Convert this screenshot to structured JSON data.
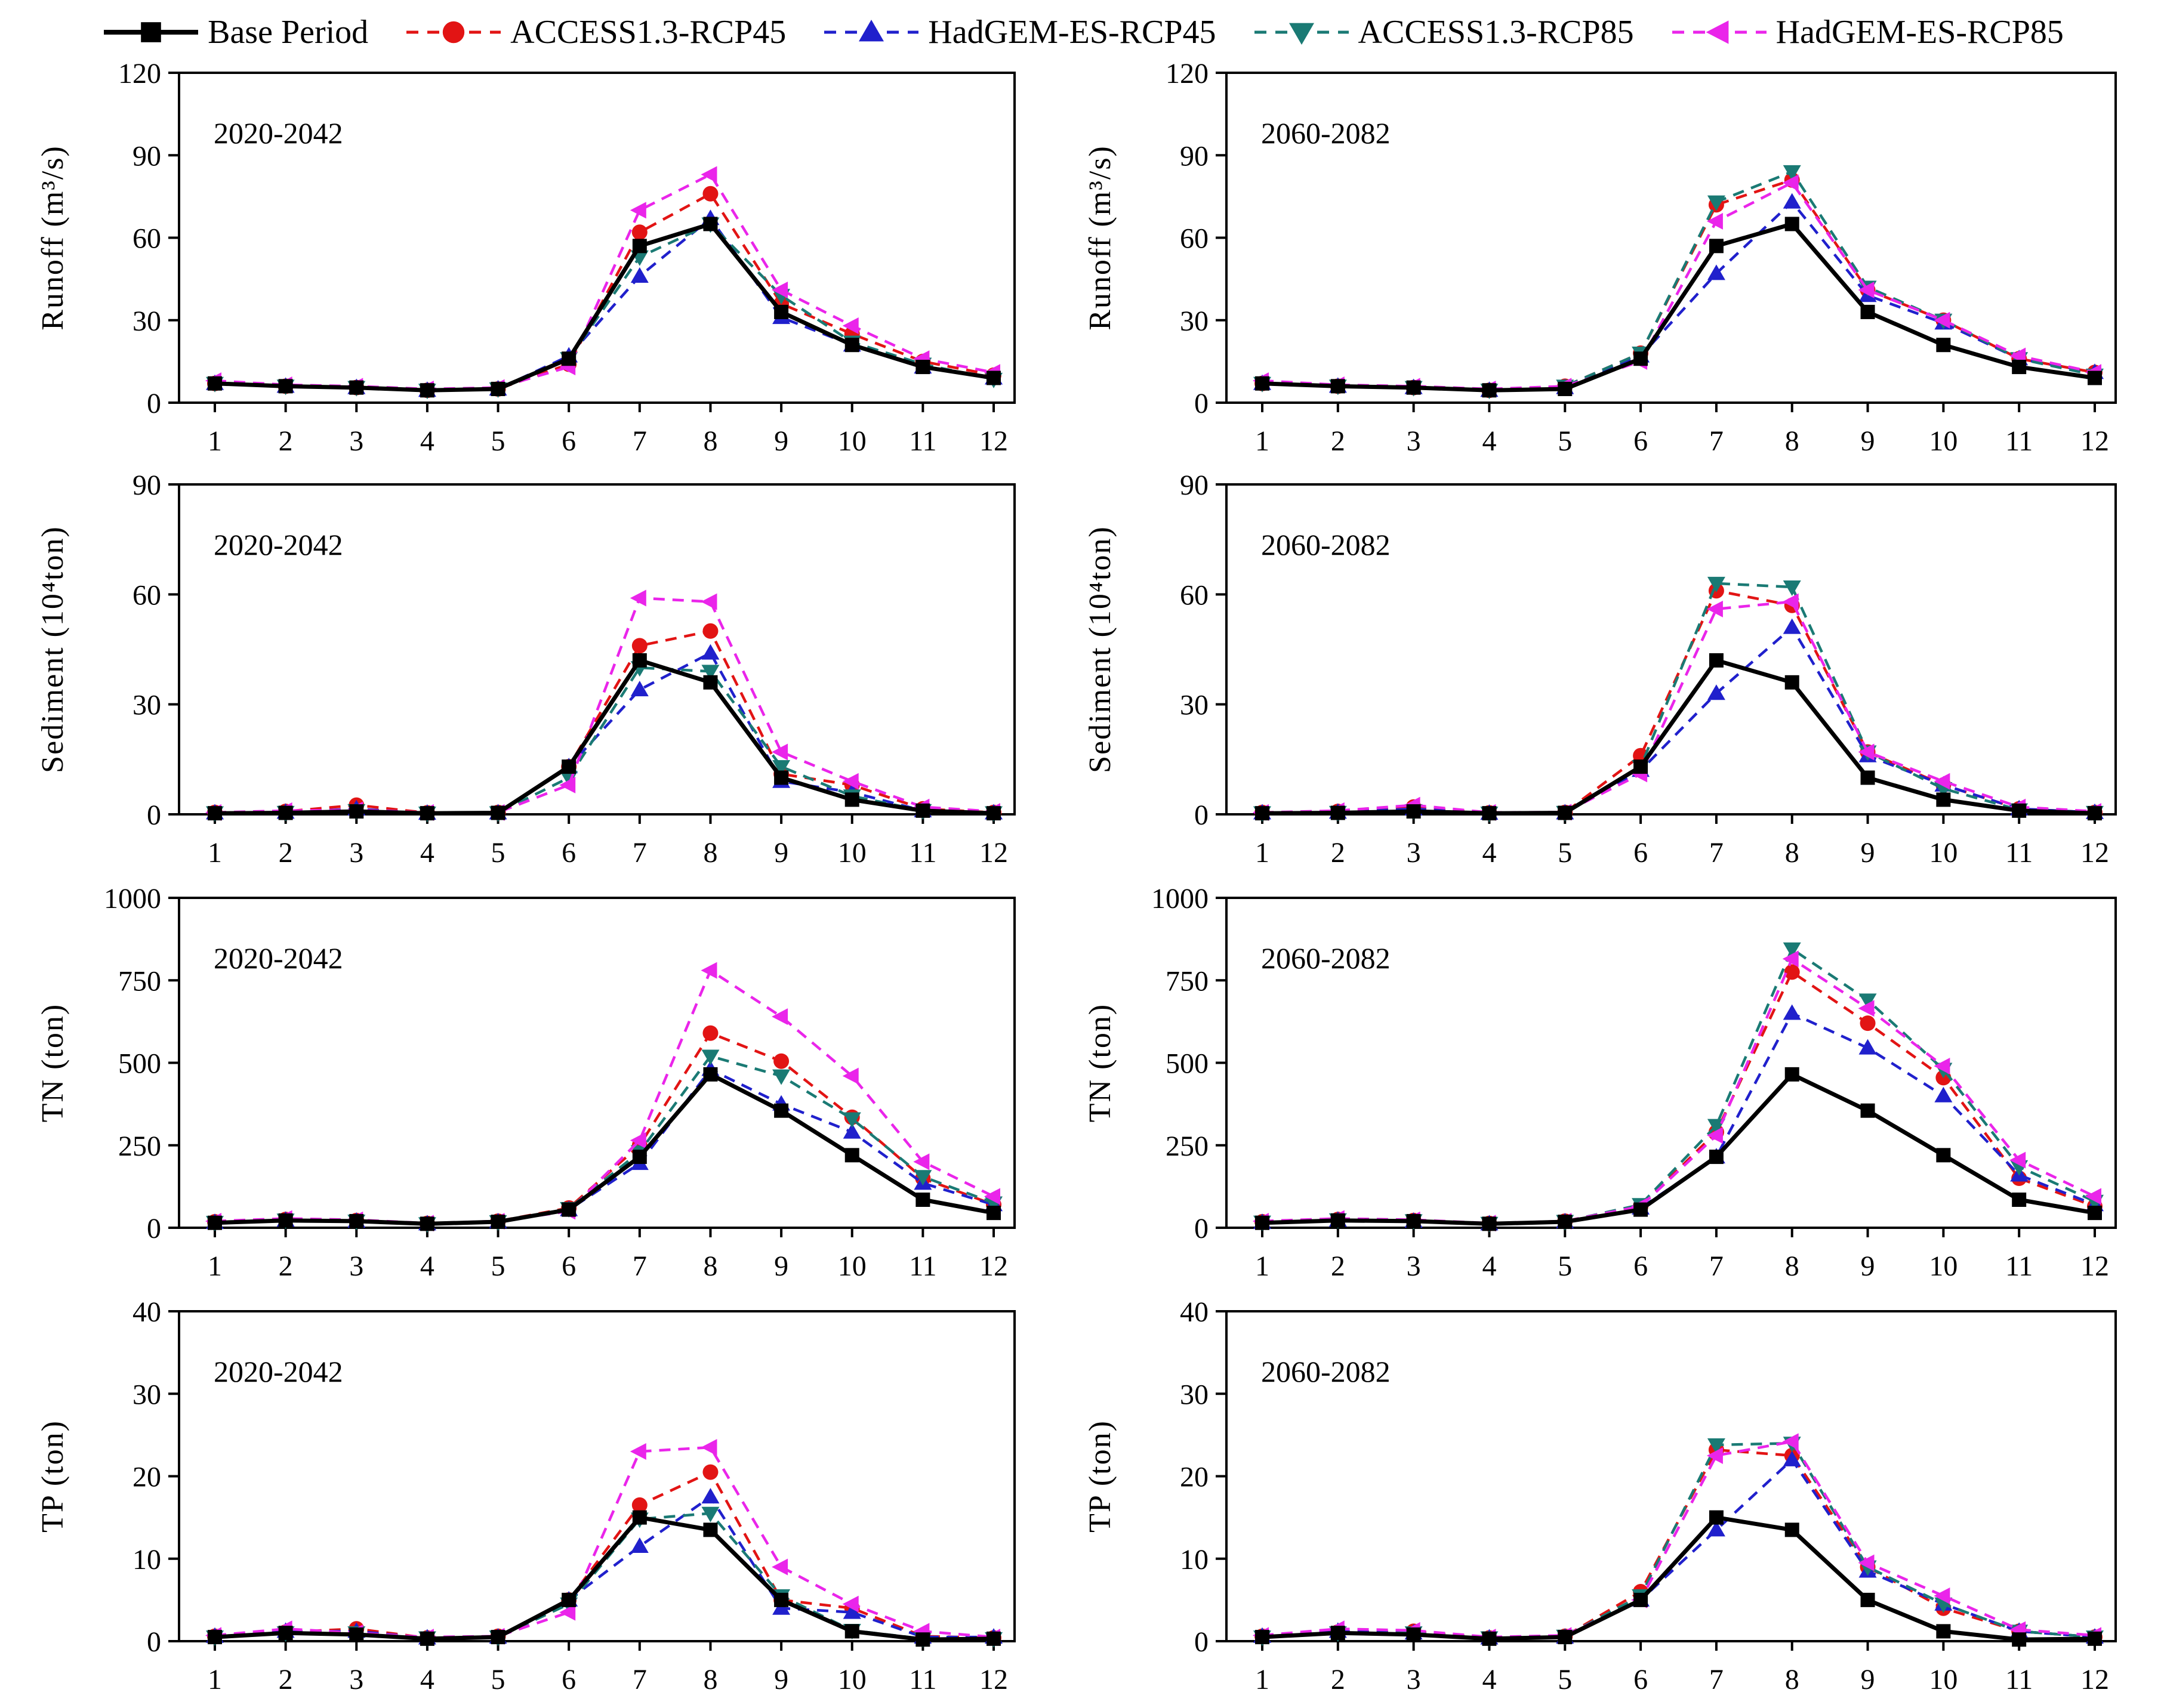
{
  "legend": {
    "items": [
      {
        "label": "Base Period",
        "color": "#000000",
        "marker": "square",
        "line_style": "solid"
      },
      {
        "label": "ACCESS1.3-RCP45",
        "color": "#E21414",
        "marker": "circle",
        "line_style": "dashed"
      },
      {
        "label": "HadGEM-ES-RCP45",
        "color": "#2020CC",
        "marker": "triangle-up",
        "line_style": "dashed"
      },
      {
        "label": "ACCESS1.3-RCP85",
        "color": "#1A7A74",
        "marker": "triangle-down",
        "line_style": "dashed"
      },
      {
        "label": "HadGEM-ES-RCP85",
        "color": "#EA25EA",
        "marker": "triangle-left",
        "line_style": "dashed"
      }
    ]
  },
  "chart_data": [
    {
      "type": "line",
      "annotation": "2020-2042",
      "ylabel": "Runoff (m³/s)",
      "ylim": [
        0,
        120
      ],
      "yticks": [
        0,
        30,
        60,
        90,
        120
      ],
      "grid": false,
      "x_categories": [
        "1",
        "2",
        "3",
        "4",
        "5",
        "6",
        "7",
        "8",
        "9",
        "10",
        "11",
        "12"
      ],
      "series": [
        {
          "name": "Base Period",
          "values": [
            7,
            6,
            5.5,
            4.5,
            5,
            16,
            57,
            65,
            33,
            21,
            13,
            9
          ]
        },
        {
          "name": "ACCESS1.3-RCP45",
          "values": [
            7,
            6,
            5.5,
            4.5,
            5,
            14,
            62,
            76,
            36,
            25,
            15,
            10
          ]
        },
        {
          "name": "HadGEM-ES-RCP45",
          "values": [
            7,
            6,
            5.5,
            4.5,
            5,
            17,
            46,
            67,
            31,
            21,
            13,
            9
          ]
        },
        {
          "name": "ACCESS1.3-RCP85",
          "values": [
            7,
            6,
            5.5,
            4.5,
            5,
            16,
            53,
            65,
            39,
            22,
            14,
            8.5
          ]
        },
        {
          "name": "HadGEM-ES-RCP85",
          "values": [
            8,
            6.5,
            6,
            5,
            5.5,
            13,
            70,
            83,
            41,
            28,
            16,
            11
          ]
        }
      ]
    },
    {
      "type": "line",
      "annotation": "2060-2082",
      "ylabel": "Runoff (m³/s)",
      "ylim": [
        0,
        120
      ],
      "yticks": [
        0,
        30,
        60,
        90,
        120
      ],
      "grid": false,
      "x_categories": [
        "1",
        "2",
        "3",
        "4",
        "5",
        "6",
        "7",
        "8",
        "9",
        "10",
        "11",
        "12"
      ],
      "series": [
        {
          "name": "Base Period",
          "values": [
            7,
            6,
            5.5,
            4.5,
            5,
            16,
            57,
            65,
            33,
            21,
            13,
            9
          ]
        },
        {
          "name": "ACCESS1.3-RCP45",
          "values": [
            7,
            6,
            5.5,
            4.5,
            6,
            18,
            72,
            81,
            41,
            30,
            16,
            11
          ]
        },
        {
          "name": "HadGEM-ES-RCP45",
          "values": [
            7,
            6,
            5.5,
            4.5,
            5.5,
            17,
            47,
            73,
            39,
            29,
            16,
            11
          ]
        },
        {
          "name": "ACCESS1.3-RCP85",
          "values": [
            7,
            6,
            5.5,
            4.5,
            6,
            18,
            73,
            84,
            42,
            30,
            16,
            10
          ]
        },
        {
          "name": "HadGEM-ES-RCP85",
          "values": [
            8,
            6.5,
            6,
            5,
            6,
            15,
            66,
            80,
            41,
            30,
            17,
            11
          ]
        }
      ]
    },
    {
      "type": "line",
      "annotation": "2020-2042",
      "ylabel": "Sediment (10⁴ton)",
      "ylim": [
        0,
        90
      ],
      "yticks": [
        0,
        30,
        60,
        90
      ],
      "grid": false,
      "x_categories": [
        "1",
        "2",
        "3",
        "4",
        "5",
        "6",
        "7",
        "8",
        "9",
        "10",
        "11",
        "12"
      ],
      "series": [
        {
          "name": "Base Period",
          "values": [
            0.3,
            0.4,
            0.8,
            0.3,
            0.4,
            13,
            42,
            36,
            10,
            4,
            1,
            0.3
          ]
        },
        {
          "name": "ACCESS1.3-RCP45",
          "values": [
            0.5,
            0.8,
            2.5,
            0.4,
            0.5,
            13,
            46,
            50,
            11,
            8,
            1.5,
            0.5
          ]
        },
        {
          "name": "HadGEM-ES-RCP45",
          "values": [
            0.4,
            0.6,
            1.5,
            0.3,
            0.4,
            13,
            34,
            44,
            9,
            6,
            1,
            0.4
          ]
        },
        {
          "name": "ACCESS1.3-RCP85",
          "values": [
            0.4,
            0.5,
            1,
            0.3,
            0.4,
            10,
            40,
            39,
            13,
            5,
            1,
            0.4
          ]
        },
        {
          "name": "HadGEM-ES-RCP85",
          "values": [
            0.5,
            1,
            1.2,
            0.5,
            0.5,
            8,
            59,
            58,
            17,
            9,
            2,
            0.8
          ]
        }
      ]
    },
    {
      "type": "line",
      "annotation": "2060-2082",
      "ylabel": "Sediment (10⁴ton)",
      "ylim": [
        0,
        90
      ],
      "yticks": [
        0,
        30,
        60,
        90
      ],
      "grid": false,
      "x_categories": [
        "1",
        "2",
        "3",
        "4",
        "5",
        "6",
        "7",
        "8",
        "9",
        "10",
        "11",
        "12"
      ],
      "series": [
        {
          "name": "Base Period",
          "values": [
            0.3,
            0.4,
            0.8,
            0.3,
            0.4,
            13,
            42,
            36,
            10,
            4,
            1,
            0.3
          ]
        },
        {
          "name": "ACCESS1.3-RCP45",
          "values": [
            0.5,
            0.8,
            2,
            0.4,
            0.5,
            16,
            61,
            57,
            17,
            8,
            1.5,
            0.5
          ]
        },
        {
          "name": "HadGEM-ES-RCP45",
          "values": [
            0.4,
            0.6,
            1.5,
            0.3,
            0.4,
            12,
            33,
            51,
            16,
            8,
            1.5,
            0.5
          ]
        },
        {
          "name": "ACCESS1.3-RCP85",
          "values": [
            0.4,
            0.5,
            1,
            0.3,
            0.5,
            13,
            63,
            62,
            17,
            7,
            1.2,
            0.5
          ]
        },
        {
          "name": "HadGEM-ES-RCP85",
          "values": [
            0.5,
            1,
            2.5,
            0.5,
            0.6,
            11,
            56,
            58,
            17,
            9,
            2,
            0.8
          ]
        }
      ]
    },
    {
      "type": "line",
      "annotation": "2020-2042",
      "ylabel": "TN (ton)",
      "ylim": [
        0,
        1000
      ],
      "yticks": [
        0,
        250,
        500,
        750,
        1000
      ],
      "grid": false,
      "x_categories": [
        "1",
        "2",
        "3",
        "4",
        "5",
        "6",
        "7",
        "8",
        "9",
        "10",
        "11",
        "12"
      ],
      "series": [
        {
          "name": "Base Period",
          "values": [
            15,
            22,
            20,
            12,
            18,
            55,
            215,
            465,
            355,
            220,
            85,
            45
          ]
        },
        {
          "name": "ACCESS1.3-RCP45",
          "values": [
            18,
            25,
            22,
            13,
            20,
            60,
            250,
            590,
            505,
            335,
            150,
            70
          ]
        },
        {
          "name": "HadGEM-ES-RCP45",
          "values": [
            16,
            23,
            20,
            12,
            18,
            55,
            195,
            480,
            375,
            290,
            135,
            70
          ]
        },
        {
          "name": "ACCESS1.3-RCP85",
          "values": [
            16,
            23,
            20,
            12,
            18,
            58,
            230,
            520,
            460,
            330,
            155,
            75
          ]
        },
        {
          "name": "HadGEM-ES-RCP85",
          "values": [
            20,
            28,
            24,
            14,
            20,
            50,
            265,
            780,
            640,
            460,
            200,
            95
          ]
        }
      ]
    },
    {
      "type": "line",
      "annotation": "2060-2082",
      "ylabel": "TN (ton)",
      "ylim": [
        0,
        1000
      ],
      "yticks": [
        0,
        250,
        500,
        750,
        1000
      ],
      "grid": false,
      "x_categories": [
        "1",
        "2",
        "3",
        "4",
        "5",
        "6",
        "7",
        "8",
        "9",
        "10",
        "11",
        "12"
      ],
      "series": [
        {
          "name": "Base Period",
          "values": [
            15,
            22,
            20,
            12,
            18,
            55,
            215,
            465,
            355,
            220,
            85,
            45
          ]
        },
        {
          "name": "ACCESS1.3-RCP45",
          "values": [
            18,
            25,
            22,
            13,
            20,
            65,
            290,
            775,
            620,
            455,
            150,
            65
          ]
        },
        {
          "name": "HadGEM-ES-RCP45",
          "values": [
            16,
            23,
            20,
            12,
            18,
            60,
            215,
            650,
            545,
            400,
            160,
            70
          ]
        },
        {
          "name": "ACCESS1.3-RCP85",
          "values": [
            17,
            24,
            21,
            13,
            19,
            70,
            310,
            845,
            690,
            480,
            185,
            80
          ]
        },
        {
          "name": "HadGEM-ES-RCP85",
          "values": [
            20,
            28,
            24,
            14,
            20,
            65,
            280,
            815,
            665,
            490,
            205,
            95
          ]
        }
      ]
    },
    {
      "type": "line",
      "annotation": "2020-2042",
      "ylabel": "TP (ton)",
      "ylim": [
        0,
        40
      ],
      "yticks": [
        0,
        10,
        20,
        30,
        40
      ],
      "grid": false,
      "x_categories": [
        "1",
        "2",
        "3",
        "4",
        "5",
        "6",
        "7",
        "8",
        "9",
        "10",
        "11",
        "12"
      ],
      "series": [
        {
          "name": "Base Period",
          "values": [
            0.5,
            1,
            0.8,
            0.3,
            0.5,
            5,
            15,
            13.5,
            5,
            1.2,
            0.2,
            0.3
          ]
        },
        {
          "name": "ACCESS1.3-RCP45",
          "values": [
            0.6,
            1.1,
            1.5,
            0.4,
            0.6,
            5,
            16.5,
            20.5,
            5,
            4,
            0.6,
            0.4
          ]
        },
        {
          "name": "HadGEM-ES-RCP45",
          "values": [
            0.6,
            1.2,
            1.2,
            0.4,
            0.5,
            5,
            11.5,
            17.5,
            4,
            3.5,
            0.5,
            0.5
          ]
        },
        {
          "name": "ACCESS1.3-RCP85",
          "values": [
            0.5,
            1,
            1,
            0.4,
            0.5,
            4.5,
            14.8,
            15.5,
            5.5,
            1.3,
            0.3,
            0.3
          ]
        },
        {
          "name": "HadGEM-ES-RCP85",
          "values": [
            0.7,
            1.5,
            1,
            0.5,
            0.6,
            3.5,
            23,
            23.5,
            9,
            4.5,
            1.2,
            0.5
          ]
        }
      ]
    },
    {
      "type": "line",
      "annotation": "2060-2082",
      "ylabel": "TP (ton)",
      "ylim": [
        0,
        40
      ],
      "yticks": [
        0,
        10,
        20,
        30,
        40
      ],
      "grid": false,
      "x_categories": [
        "1",
        "2",
        "3",
        "4",
        "5",
        "6",
        "7",
        "8",
        "9",
        "10",
        "11",
        "12"
      ],
      "series": [
        {
          "name": "Base Period",
          "values": [
            0.5,
            1,
            0.8,
            0.3,
            0.5,
            5,
            15,
            13.5,
            5,
            1.2,
            0.2,
            0.3
          ]
        },
        {
          "name": "ACCESS1.3-RCP45",
          "values": [
            0.6,
            1.1,
            1.2,
            0.4,
            0.6,
            6,
            23.2,
            22.5,
            9,
            4,
            1.2,
            0.5
          ]
        },
        {
          "name": "HadGEM-ES-RCP45",
          "values": [
            0.6,
            1.2,
            1,
            0.4,
            0.5,
            5,
            13.5,
            22,
            8.5,
            4.5,
            1.2,
            0.5
          ]
        },
        {
          "name": "ACCESS1.3-RCP85",
          "values": [
            0.5,
            1,
            1,
            0.4,
            0.6,
            5.5,
            23.8,
            24,
            9,
            4.5,
            1.2,
            0.5
          ]
        },
        {
          "name": "HadGEM-ES-RCP85",
          "values": [
            0.7,
            1.5,
            1.3,
            0.5,
            0.7,
            5,
            22.5,
            24.2,
            9.5,
            5.5,
            1.4,
            0.7
          ]
        }
      ]
    }
  ]
}
